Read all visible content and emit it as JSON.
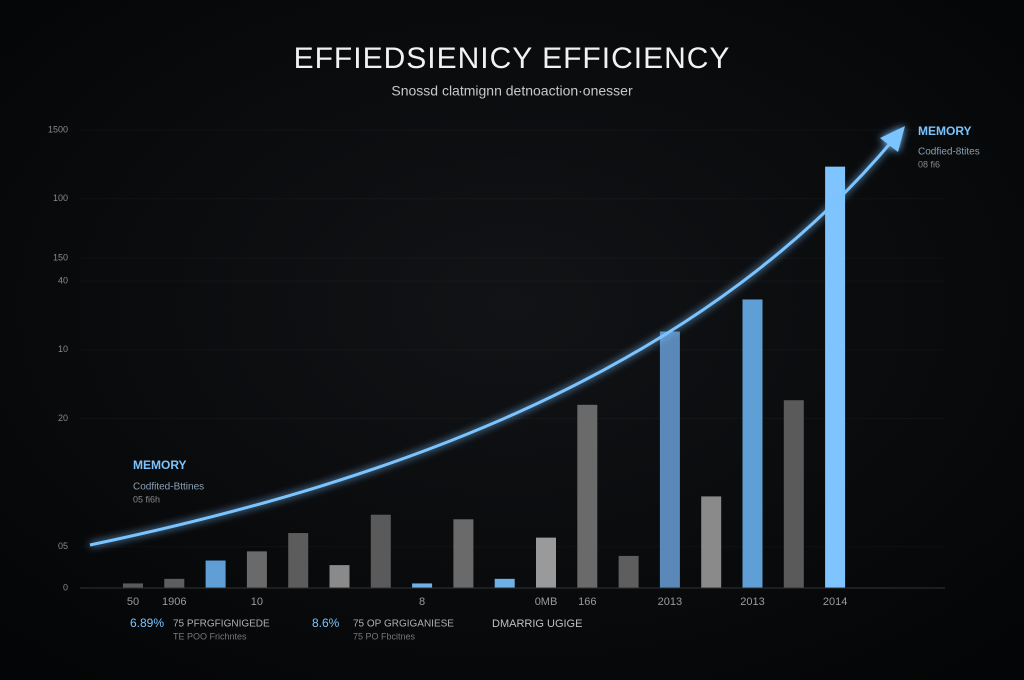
{
  "chart_data": {
    "type": "bar",
    "title": "EFFIEDSIENICY EFFICIENCY",
    "subtitle": "Snossd clatmignn detnoaction·onesser",
    "categories": [
      "50",
      "1906",
      null,
      "10",
      null,
      null,
      null,
      "8",
      null,
      null,
      "0MB",
      "166",
      null,
      "2013",
      null,
      "2013",
      null,
      "2014"
    ],
    "values": [
      1,
      2,
      6,
      8,
      12,
      5,
      16,
      1,
      15,
      2,
      11,
      40,
      7,
      56,
      20,
      63,
      41,
      92
    ],
    "colors": [
      "#5a5a5a",
      "#5e5e5e",
      "#5f9fd6",
      "#6a6a6a",
      "#5c5c5c",
      "#8a8a8a",
      "#5a5a5a",
      "#6fb0e6",
      "#6a6a6a",
      "#6fb0e6",
      "#9a9a9a",
      "#6a6a6a",
      "#5e5e5e",
      "#5a88b8",
      "#8a8a8a",
      "#5f9fd6",
      "#5a5a5a",
      "#7fc4ff"
    ],
    "ylim": [
      0,
      100
    ],
    "yticks": [
      0,
      {
        "value": 9,
        "label": "05"
      },
      {
        "value": 37,
        "label": "20"
      },
      {
        "value": 52,
        "label": "10"
      },
      {
        "value": 67,
        "label": "40"
      },
      {
        "value": 72,
        "label": "150"
      },
      {
        "value": 85,
        "label": "100"
      },
      {
        "value": 100,
        "label": "1500"
      }
    ],
    "annotations": [
      "MEMORY",
      "Codfited-Bttines",
      "05 fi6h",
      "MEMORY",
      "Codfied-8tites",
      "08 fi6"
    ]
  },
  "footer": [
    "6.89%",
    "75 PFRGFIGNIGEDE",
    "TE POO Frichntes",
    "8.6%",
    "75 OP GRGIGANIESE",
    "75 PO Fbcitnes",
    "DMARRIG UGIGE"
  ]
}
